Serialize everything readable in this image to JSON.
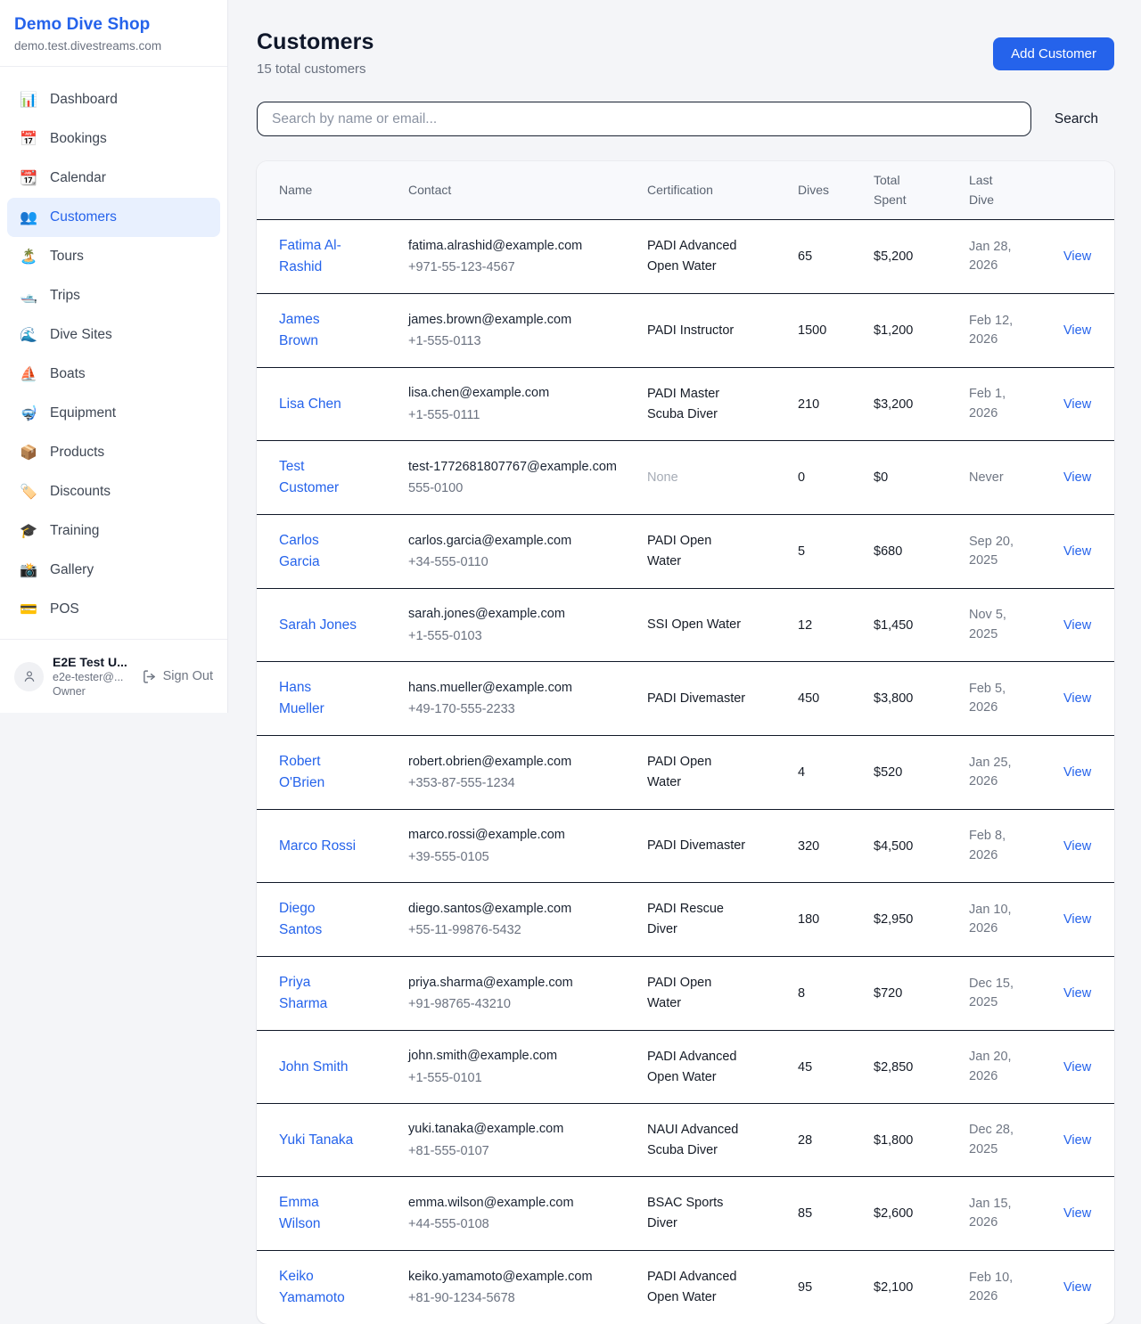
{
  "colors": {
    "accent": "#2563eb",
    "link": "#2563eb",
    "row_border": "#101828",
    "muted_text": "#9ca3af"
  },
  "sidebar": {
    "brand": {
      "name": "Demo Dive Shop",
      "domain": "demo.test.divestreams.com"
    },
    "items": [
      {
        "icon": "📊",
        "label": "Dashboard",
        "active": false
      },
      {
        "icon": "📅",
        "label": "Bookings",
        "active": false
      },
      {
        "icon": "📆",
        "label": "Calendar",
        "active": false
      },
      {
        "icon": "👥",
        "label": "Customers",
        "active": true
      },
      {
        "icon": "🏝️",
        "label": "Tours",
        "active": false
      },
      {
        "icon": "🛥️",
        "label": "Trips",
        "active": false
      },
      {
        "icon": "🌊",
        "label": "Dive Sites",
        "active": false
      },
      {
        "icon": "⛵",
        "label": "Boats",
        "active": false
      },
      {
        "icon": "🤿",
        "label": "Equipment",
        "active": false
      },
      {
        "icon": "📦",
        "label": "Products",
        "active": false
      },
      {
        "icon": "🏷️",
        "label": "Discounts",
        "active": false
      },
      {
        "icon": "🎓",
        "label": "Training",
        "active": false
      },
      {
        "icon": "📸",
        "label": "Gallery",
        "active": false
      },
      {
        "icon": "💳",
        "label": "POS",
        "active": false
      }
    ],
    "user": {
      "name": "E2E Test U...",
      "email": "e2e-tester@...",
      "role": "Owner",
      "sign_out": "Sign Out"
    }
  },
  "header": {
    "title": "Customers",
    "subtitle": "15 total customers",
    "add_button": "Add Customer"
  },
  "search": {
    "placeholder": "Search by name or email...",
    "button": "Search"
  },
  "table": {
    "columns": [
      "Name",
      "Contact",
      "Certification",
      "Dives",
      "Total Spent",
      "Last Dive",
      ""
    ],
    "view_label": "View",
    "rows": [
      {
        "name": "Fatima Al-Rashid",
        "email": "fatima.alrashid@example.com",
        "phone": "+971-55-123-4567",
        "certification": "PADI Advanced Open Water",
        "dives": "65",
        "total_spent": "$5,200",
        "last_dive": "Jan 28, 2026"
      },
      {
        "name": "James Brown",
        "email": "james.brown@example.com",
        "phone": "+1-555-0113",
        "certification": "PADI Instructor",
        "dives": "1500",
        "total_spent": "$1,200",
        "last_dive": "Feb 12, 2026"
      },
      {
        "name": "Lisa Chen",
        "email": "lisa.chen@example.com",
        "phone": "+1-555-0111",
        "certification": "PADI Master Scuba Diver",
        "dives": "210",
        "total_spent": "$3,200",
        "last_dive": "Feb 1, 2026"
      },
      {
        "name": "Test Customer",
        "email": "test-1772681807767@example.com",
        "phone": "555-0100",
        "certification": "None",
        "dives": "0",
        "total_spent": "$0",
        "last_dive": "Never"
      },
      {
        "name": "Carlos Garcia",
        "email": "carlos.garcia@example.com",
        "phone": "+34-555-0110",
        "certification": "PADI Open Water",
        "dives": "5",
        "total_spent": "$680",
        "last_dive": "Sep 20, 2025"
      },
      {
        "name": "Sarah Jones",
        "email": "sarah.jones@example.com",
        "phone": "+1-555-0103",
        "certification": "SSI Open Water",
        "dives": "12",
        "total_spent": "$1,450",
        "last_dive": "Nov 5, 2025"
      },
      {
        "name": "Hans Mueller",
        "email": "hans.mueller@example.com",
        "phone": "+49-170-555-2233",
        "certification": "PADI Divemaster",
        "dives": "450",
        "total_spent": "$3,800",
        "last_dive": "Feb 5, 2026"
      },
      {
        "name": "Robert O'Brien",
        "email": "robert.obrien@example.com",
        "phone": "+353-87-555-1234",
        "certification": "PADI Open Water",
        "dives": "4",
        "total_spent": "$520",
        "last_dive": "Jan 25, 2026"
      },
      {
        "name": "Marco Rossi",
        "email": "marco.rossi@example.com",
        "phone": "+39-555-0105",
        "certification": "PADI Divemaster",
        "dives": "320",
        "total_spent": "$4,500",
        "last_dive": "Feb 8, 2026"
      },
      {
        "name": "Diego Santos",
        "email": "diego.santos@example.com",
        "phone": "+55-11-99876-5432",
        "certification": "PADI Rescue Diver",
        "dives": "180",
        "total_spent": "$2,950",
        "last_dive": "Jan 10, 2026"
      },
      {
        "name": "Priya Sharma",
        "email": "priya.sharma@example.com",
        "phone": "+91-98765-43210",
        "certification": "PADI Open Water",
        "dives": "8",
        "total_spent": "$720",
        "last_dive": "Dec 15, 2025"
      },
      {
        "name": "John Smith",
        "email": "john.smith@example.com",
        "phone": "+1-555-0101",
        "certification": "PADI Advanced Open Water",
        "dives": "45",
        "total_spent": "$2,850",
        "last_dive": "Jan 20, 2026"
      },
      {
        "name": "Yuki Tanaka",
        "email": "yuki.tanaka@example.com",
        "phone": "+81-555-0107",
        "certification": "NAUI Advanced Scuba Diver",
        "dives": "28",
        "total_spent": "$1,800",
        "last_dive": "Dec 28, 2025"
      },
      {
        "name": "Emma Wilson",
        "email": "emma.wilson@example.com",
        "phone": "+44-555-0108",
        "certification": "BSAC Sports Diver",
        "dives": "85",
        "total_spent": "$2,600",
        "last_dive": "Jan 15, 2026"
      },
      {
        "name": "Keiko Yamamoto",
        "email": "keiko.yamamoto@example.com",
        "phone": "+81-90-1234-5678",
        "certification": "PADI Advanced Open Water",
        "dives": "95",
        "total_spent": "$2,100",
        "last_dive": "Feb 10, 2026"
      }
    ]
  }
}
